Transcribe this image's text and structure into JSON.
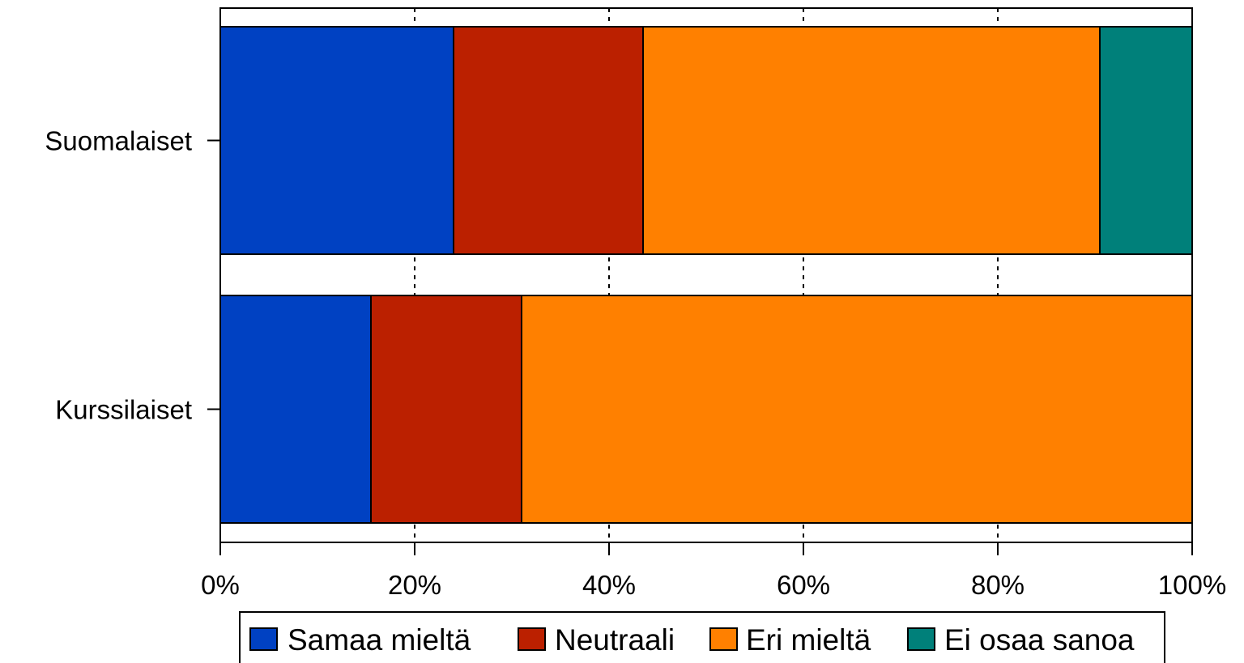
{
  "chart_data": {
    "type": "bar",
    "orientation": "horizontal",
    "stacked": true,
    "categories": [
      "Suomalaiset",
      "Kurssilaiset"
    ],
    "series": [
      {
        "name": "Samaa mieltä",
        "values": [
          24,
          15.5
        ],
        "color": "#0041c2"
      },
      {
        "name": "Neutraali",
        "values": [
          19.5,
          15.5
        ],
        "color": "#bb2000"
      },
      {
        "name": "Eri mieltä",
        "values": [
          47,
          69
        ],
        "color": "#ff8000"
      },
      {
        "name": "Ei osaa sanoa",
        "values": [
          9.5,
          0
        ],
        "color": "#00807a"
      }
    ],
    "xlim": [
      0,
      100
    ],
    "xticks": [
      {
        "value": 0,
        "label": "0%"
      },
      {
        "value": 20,
        "label": "20%"
      },
      {
        "value": 40,
        "label": "40%"
      },
      {
        "value": 60,
        "label": "60%"
      },
      {
        "value": 80,
        "label": "80%"
      },
      {
        "value": 100,
        "label": "100%"
      }
    ],
    "grid": "vertical dashed",
    "legend_position": "bottom"
  }
}
